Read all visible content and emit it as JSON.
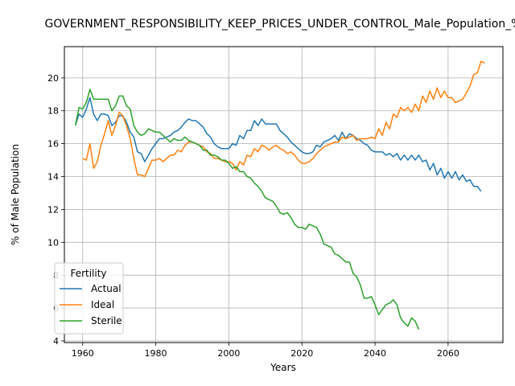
{
  "chart_data": {
    "type": "line",
    "title": "GOVERNMENT_RESPONSIBILITY_KEEP_PRICES_UNDER_CONTROL_Male_Population_%",
    "xlabel": "Years",
    "ylabel": "% of Male Population",
    "xlim": [
      1955,
      2075
    ],
    "ylim": [
      3.9,
      21.9
    ],
    "x_ticks": [
      1960,
      1980,
      2000,
      2020,
      2040,
      2060
    ],
    "y_ticks": [
      4,
      6,
      8,
      10,
      12,
      14,
      16,
      18,
      20
    ],
    "grid": true,
    "legend": {
      "title": "Fertility",
      "location": "lower-left"
    },
    "series": [
      {
        "name": "Actual",
        "color": "#1f77b4",
        "x_start": 1958,
        "values": [
          17.1,
          17.8,
          17.6,
          18.1,
          18.8,
          17.8,
          17.4,
          17.8,
          17.8,
          17.7,
          17.1,
          17.3,
          17.7,
          17.7,
          17.3,
          16.7,
          16.4,
          15.5,
          15.4,
          14.9,
          15.3,
          15.7,
          16.0,
          16.3,
          16.3,
          16.4,
          16.5,
          16.7,
          16.8,
          17.0,
          17.3,
          17.5,
          17.4,
          17.4,
          17.2,
          17.0,
          16.6,
          16.4,
          16.0,
          15.8,
          15.7,
          15.7,
          15.7,
          16.0,
          15.9,
          16.5,
          16.3,
          16.8,
          16.8,
          17.4,
          17.1,
          17.5,
          17.2,
          17.2,
          17.2,
          17.2,
          16.8,
          16.6,
          16.4,
          16.1,
          15.9,
          15.7,
          15.5,
          15.4,
          15.4,
          15.5,
          15.9,
          15.8,
          16.1,
          16.2,
          16.3,
          16.5,
          16.2,
          16.7,
          16.3,
          16.6,
          16.5,
          16.3,
          16.2,
          16.0,
          15.9,
          15.6,
          15.5,
          15.5,
          15.5,
          15.3,
          15.4,
          15.2,
          15.4,
          15.0,
          15.3,
          15.0,
          15.3,
          15.0,
          15.3,
          14.9,
          15.0,
          14.4,
          14.8,
          14.1,
          14.5,
          13.9,
          14.3,
          13.9,
          14.3,
          13.8,
          14.1,
          13.7,
          13.8,
          13.4,
          13.4,
          13.1
        ]
      },
      {
        "name": "Ideal",
        "color": "#ff7f0e",
        "x_start": 1960,
        "values": [
          15.1,
          15.0,
          16.0,
          14.5,
          14.9,
          15.9,
          16.6,
          17.4,
          16.5,
          17.1,
          17.9,
          17.7,
          17.1,
          16.3,
          15.1,
          14.1,
          14.1,
          14.0,
          14.5,
          15.0,
          15.0,
          15.1,
          14.9,
          15.1,
          15.3,
          15.3,
          15.6,
          15.5,
          15.9,
          16.1,
          16.1,
          16.0,
          15.9,
          15.8,
          15.5,
          15.4,
          15.1,
          15.1,
          15.0,
          14.9,
          14.9,
          14.8,
          14.4,
          14.9,
          14.7,
          15.3,
          15.2,
          15.7,
          15.5,
          15.9,
          15.8,
          15.6,
          15.8,
          15.9,
          15.7,
          15.6,
          15.4,
          15.5,
          15.3,
          15.0,
          14.8,
          14.8,
          14.9,
          15.1,
          15.4,
          15.6,
          15.8,
          15.9,
          16.0,
          16.1,
          16.1,
          16.4,
          16.3,
          16.4,
          16.5,
          16.2,
          16.3,
          16.3,
          16.3,
          16.4,
          16.3,
          16.9,
          16.5,
          17.3,
          16.9,
          17.8,
          17.6,
          18.2,
          18.0,
          18.2,
          17.9,
          18.4,
          18.0,
          18.9,
          18.5,
          19.2,
          18.7,
          19.4,
          18.8,
          19.2,
          18.8,
          18.8,
          18.5,
          18.6,
          18.7,
          19.1,
          19.5,
          20.2,
          20.3,
          21.0,
          20.9
        ]
      },
      {
        "name": "Sterile",
        "color": "#2ca02c",
        "x_start": 1958,
        "values": [
          17.1,
          18.2,
          18.1,
          18.5,
          19.3,
          18.7,
          18.7,
          18.7,
          18.7,
          18.7,
          18.0,
          18.3,
          18.9,
          18.9,
          18.3,
          18.1,
          17.1,
          16.7,
          16.5,
          16.6,
          16.9,
          16.8,
          16.7,
          16.7,
          16.5,
          16.3,
          16.1,
          16.3,
          16.2,
          16.2,
          16.4,
          16.2,
          16.1,
          16.0,
          15.9,
          15.6,
          15.6,
          15.3,
          15.3,
          15.2,
          15.0,
          15.0,
          14.8,
          14.5,
          14.6,
          14.3,
          14.3,
          14.0,
          13.9,
          13.6,
          13.4,
          13.1,
          12.7,
          12.6,
          12.5,
          12.2,
          11.8,
          11.7,
          11.8,
          11.5,
          11.1,
          10.9,
          10.9,
          10.8,
          11.1,
          11.0,
          10.9,
          10.5,
          9.9,
          9.8,
          9.7,
          9.3,
          9.2,
          9.0,
          8.8,
          8.8,
          8.1,
          7.9,
          7.4,
          6.6,
          6.6,
          6.7,
          6.2,
          5.6,
          5.9,
          6.2,
          6.3,
          6.5,
          6.2,
          5.4,
          5.1,
          4.9,
          5.4,
          5.2,
          4.7
        ]
      }
    ]
  }
}
